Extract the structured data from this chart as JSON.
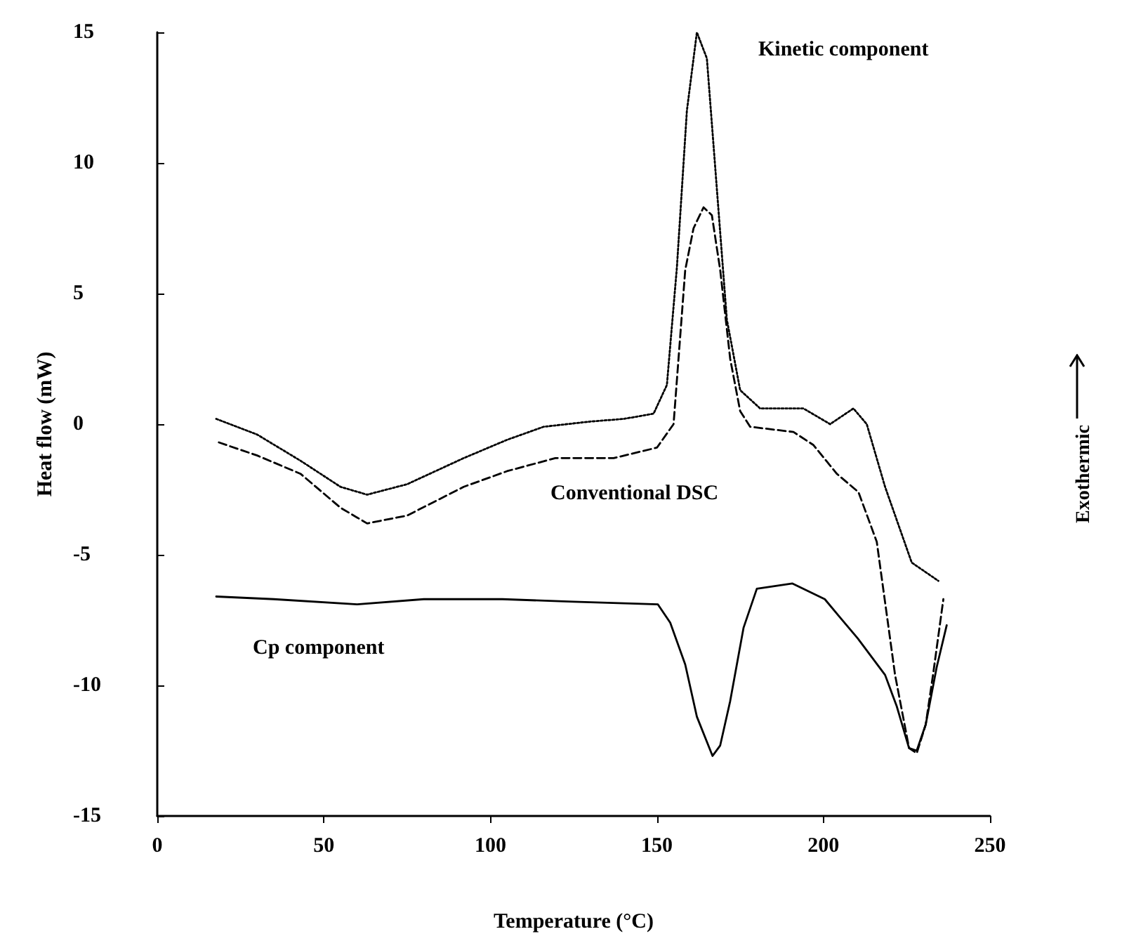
{
  "chart_data": {
    "type": "line",
    "xlabel": "Temperature (°C)",
    "ylabel": "Heat flow (mW)",
    "y2label": "Exothermic",
    "xlim": [
      0,
      250
    ],
    "xticks": [
      0,
      50,
      100,
      150,
      200,
      250
    ],
    "ylim": [
      -15,
      15
    ],
    "yticks": [
      -15,
      -10,
      -5,
      0,
      5,
      10,
      15
    ],
    "marker": "none",
    "series": [
      {
        "name": "Kinetic component",
        "color": "#000000",
        "line_style": "dotted",
        "x": [
          17.7,
          30,
          43,
          55,
          63,
          75,
          92,
          105,
          116,
          130,
          140,
          149,
          153,
          156,
          159,
          162,
          165,
          168,
          171,
          175,
          181,
          194,
          202,
          209,
          213,
          218.5,
          226.5,
          234.5
        ],
        "values": [
          0.2,
          -0.4,
          -1.4,
          -2.4,
          -2.7,
          -2.3,
          -1.3,
          -0.6,
          -0.1,
          0.1,
          0.2,
          0.4,
          1.5,
          6,
          12,
          15,
          14,
          9,
          4,
          1.3,
          0.6,
          0.6,
          0,
          0.6,
          0,
          -2.4,
          -5.3,
          -6.0
        ]
      },
      {
        "name": "Conventional DSC",
        "color": "#000000",
        "line_style": "dashed",
        "x": [
          18.5,
          30,
          43,
          55,
          63,
          75,
          92,
          105,
          119.5,
          137,
          150,
          155,
          158.5,
          161,
          164,
          166.5,
          169,
          172,
          175,
          178,
          191,
          197,
          204,
          210.5,
          216,
          221.5,
          225.7,
          228,
          230.7,
          233,
          236
        ],
        "values": [
          -0.7,
          -1.2,
          -1.9,
          -3.2,
          -3.8,
          -3.5,
          -2.4,
          -1.8,
          -1.3,
          -1.3,
          -0.9,
          0,
          5.9,
          7.5,
          8.3,
          8,
          5.9,
          2.5,
          0.5,
          -0.1,
          -0.3,
          -0.8,
          -1.9,
          -2.6,
          -4.5,
          -9.6,
          -12.4,
          -12.6,
          -11.5,
          -9.5,
          -6.7
        ]
      },
      {
        "name": "Cp component",
        "color": "#000000",
        "line_style": "solid",
        "x": [
          17.7,
          35,
          60,
          80,
          103.6,
          125,
          150.3,
          154,
          158.5,
          162,
          166.7,
          169,
          172,
          176,
          180,
          190.7,
          200.4,
          205,
          210.3,
          218.5,
          222,
          225.7,
          228,
          230.7,
          234,
          237
        ],
        "values": [
          -6.6,
          -6.7,
          -6.9,
          -6.7,
          -6.7,
          -6.8,
          -6.9,
          -7.6,
          -9.2,
          -11.2,
          -12.7,
          -12.3,
          -10.6,
          -7.8,
          -6.3,
          -6.1,
          -6.7,
          -7.4,
          -8.2,
          -9.6,
          -10.8,
          -12.4,
          -12.5,
          -11.5,
          -9.3,
          -7.7
        ]
      }
    ]
  }
}
